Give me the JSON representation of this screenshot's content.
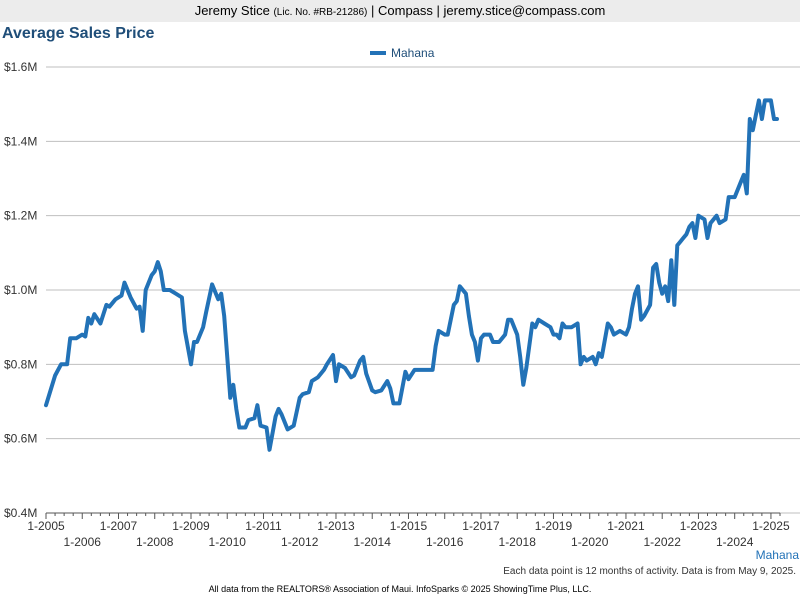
{
  "header": {
    "name": "Jeremy Stice",
    "license": "(Lic. No. #RB-21286)",
    "company_email": "| Compass | jeremy.stice@compass.com"
  },
  "title": "Average Sales Price",
  "legend": {
    "label": "Mahana"
  },
  "region_label": "Mahana",
  "note": "Each data point is 12 months of activity. Data is from May 9, 2025.",
  "footer": "All data from the REALTORS® Association of Maui. InfoSparks © 2025 ShowingTime Plus, LLC.",
  "colors": {
    "series": "#2272b7",
    "title": "#1f4e79",
    "grid": "#bfbfbf"
  },
  "chart_data": {
    "type": "line",
    "title": "Average Sales Price",
    "xlabel": "",
    "ylabel": "",
    "ylim": [
      400000,
      1600000
    ],
    "xlim": [
      "2005-01",
      "2025-04"
    ],
    "grid": true,
    "legend_position": "top-center",
    "y_tick_labels": [
      "$0.4M",
      "$0.6M",
      "$0.8M",
      "$1.0M",
      "$1.2M",
      "$1.4M",
      "$1.6M"
    ],
    "y_tick_values": [
      400000,
      600000,
      800000,
      1000000,
      1200000,
      1400000,
      1600000
    ],
    "x_tick_labels": [
      "1-2005",
      "1-2006",
      "1-2007",
      "1-2008",
      "1-2009",
      "1-2010",
      "1-2011",
      "1-2012",
      "1-2013",
      "1-2014",
      "1-2015",
      "1-2016",
      "1-2017",
      "1-2018",
      "1-2019",
      "1-2020",
      "1-2021",
      "1-2022",
      "1-2023",
      "1-2024",
      "1-2025"
    ],
    "series": [
      {
        "name": "Mahana",
        "points": [
          [
            "2005-01",
            690000
          ],
          [
            "2005-04",
            770000
          ],
          [
            "2005-06",
            800000
          ],
          [
            "2005-08",
            800000
          ],
          [
            "2005-09",
            870000
          ],
          [
            "2005-11",
            870000
          ],
          [
            "2006-01",
            880000
          ],
          [
            "2006-02",
            875000
          ],
          [
            "2006-03",
            925000
          ],
          [
            "2006-04",
            910000
          ],
          [
            "2006-05",
            935000
          ],
          [
            "2006-07",
            910000
          ],
          [
            "2006-09",
            960000
          ],
          [
            "2006-10",
            955000
          ],
          [
            "2006-12",
            975000
          ],
          [
            "2007-02",
            985000
          ],
          [
            "2007-03",
            1020000
          ],
          [
            "2007-05",
            980000
          ],
          [
            "2007-07",
            950000
          ],
          [
            "2007-08",
            955000
          ],
          [
            "2007-09",
            890000
          ],
          [
            "2007-10",
            1000000
          ],
          [
            "2007-12",
            1040000
          ],
          [
            "2008-01",
            1050000
          ],
          [
            "2008-02",
            1075000
          ],
          [
            "2008-03",
            1050000
          ],
          [
            "2008-04",
            1000000
          ],
          [
            "2008-06",
            1000000
          ],
          [
            "2008-08",
            990000
          ],
          [
            "2008-10",
            980000
          ],
          [
            "2008-11",
            890000
          ],
          [
            "2009-01",
            800000
          ],
          [
            "2009-02",
            860000
          ],
          [
            "2009-03",
            860000
          ],
          [
            "2009-05",
            900000
          ],
          [
            "2009-06",
            940000
          ],
          [
            "2009-08",
            1015000
          ],
          [
            "2009-10",
            975000
          ],
          [
            "2009-11",
            990000
          ],
          [
            "2009-12",
            930000
          ],
          [
            "2010-02",
            710000
          ],
          [
            "2010-03",
            745000
          ],
          [
            "2010-04",
            680000
          ],
          [
            "2010-05",
            630000
          ],
          [
            "2010-07",
            630000
          ],
          [
            "2010-08",
            650000
          ],
          [
            "2010-10",
            655000
          ],
          [
            "2010-11",
            690000
          ],
          [
            "2010-12",
            635000
          ],
          [
            "2011-02",
            630000
          ],
          [
            "2011-03",
            570000
          ],
          [
            "2011-05",
            660000
          ],
          [
            "2011-06",
            680000
          ],
          [
            "2011-07",
            665000
          ],
          [
            "2011-09",
            625000
          ],
          [
            "2011-11",
            635000
          ],
          [
            "2012-01",
            710000
          ],
          [
            "2012-02",
            720000
          ],
          [
            "2012-04",
            725000
          ],
          [
            "2012-05",
            755000
          ],
          [
            "2012-07",
            765000
          ],
          [
            "2012-09",
            785000
          ],
          [
            "2012-10",
            800000
          ],
          [
            "2012-12",
            825000
          ],
          [
            "2013-01",
            755000
          ],
          [
            "2013-02",
            800000
          ],
          [
            "2013-04",
            790000
          ],
          [
            "2013-06",
            765000
          ],
          [
            "2013-07",
            770000
          ],
          [
            "2013-09",
            810000
          ],
          [
            "2013-10",
            820000
          ],
          [
            "2013-11",
            775000
          ],
          [
            "2014-01",
            730000
          ],
          [
            "2014-02",
            725000
          ],
          [
            "2014-04",
            730000
          ],
          [
            "2014-06",
            755000
          ],
          [
            "2014-07",
            735000
          ],
          [
            "2014-08",
            695000
          ],
          [
            "2014-10",
            695000
          ],
          [
            "2014-12",
            780000
          ],
          [
            "2015-01",
            760000
          ],
          [
            "2015-03",
            785000
          ],
          [
            "2015-06",
            785000
          ],
          [
            "2015-09",
            785000
          ],
          [
            "2015-10",
            850000
          ],
          [
            "2015-11",
            890000
          ],
          [
            "2016-01",
            880000
          ],
          [
            "2016-02",
            880000
          ],
          [
            "2016-04",
            960000
          ],
          [
            "2016-05",
            970000
          ],
          [
            "2016-06",
            1010000
          ],
          [
            "2016-08",
            990000
          ],
          [
            "2016-09",
            930000
          ],
          [
            "2016-10",
            880000
          ],
          [
            "2016-11",
            860000
          ],
          [
            "2016-12",
            810000
          ],
          [
            "2017-01",
            870000
          ],
          [
            "2017-02",
            880000
          ],
          [
            "2017-04",
            880000
          ],
          [
            "2017-05",
            860000
          ],
          [
            "2017-07",
            860000
          ],
          [
            "2017-09",
            880000
          ],
          [
            "2017-10",
            920000
          ],
          [
            "2017-11",
            920000
          ],
          [
            "2018-01",
            880000
          ],
          [
            "2018-02",
            820000
          ],
          [
            "2018-03",
            745000
          ],
          [
            "2018-04",
            790000
          ],
          [
            "2018-06",
            910000
          ],
          [
            "2018-07",
            900000
          ],
          [
            "2018-08",
            920000
          ],
          [
            "2018-10",
            910000
          ],
          [
            "2018-12",
            900000
          ],
          [
            "2019-01",
            880000
          ],
          [
            "2019-02",
            880000
          ],
          [
            "2019-03",
            870000
          ],
          [
            "2019-04",
            910000
          ],
          [
            "2019-05",
            900000
          ],
          [
            "2019-07",
            900000
          ],
          [
            "2019-09",
            910000
          ],
          [
            "2019-10",
            800000
          ],
          [
            "2019-11",
            820000
          ],
          [
            "2019-12",
            810000
          ],
          [
            "2020-02",
            820000
          ],
          [
            "2020-03",
            800000
          ],
          [
            "2020-04",
            830000
          ],
          [
            "2020-05",
            820000
          ],
          [
            "2020-07",
            910000
          ],
          [
            "2020-08",
            900000
          ],
          [
            "2020-09",
            880000
          ],
          [
            "2020-11",
            890000
          ],
          [
            "2021-01",
            880000
          ],
          [
            "2021-02",
            900000
          ],
          [
            "2021-03",
            950000
          ],
          [
            "2021-04",
            990000
          ],
          [
            "2021-05",
            1010000
          ],
          [
            "2021-06",
            920000
          ],
          [
            "2021-07",
            930000
          ],
          [
            "2021-09",
            960000
          ],
          [
            "2021-10",
            1060000
          ],
          [
            "2021-11",
            1070000
          ],
          [
            "2021-12",
            1020000
          ],
          [
            "2022-01",
            990000
          ],
          [
            "2022-02",
            1010000
          ],
          [
            "2022-03",
            970000
          ],
          [
            "2022-04",
            1080000
          ],
          [
            "2022-05",
            960000
          ],
          [
            "2022-06",
            1120000
          ],
          [
            "2022-07",
            1130000
          ],
          [
            "2022-08",
            1140000
          ],
          [
            "2022-09",
            1150000
          ],
          [
            "2022-10",
            1170000
          ],
          [
            "2022-11",
            1180000
          ],
          [
            "2022-12",
            1140000
          ],
          [
            "2023-01",
            1200000
          ],
          [
            "2023-03",
            1190000
          ],
          [
            "2023-04",
            1140000
          ],
          [
            "2023-05",
            1180000
          ],
          [
            "2023-07",
            1200000
          ],
          [
            "2023-08",
            1180000
          ],
          [
            "2023-10",
            1190000
          ],
          [
            "2023-11",
            1250000
          ],
          [
            "2024-01",
            1250000
          ],
          [
            "2024-03",
            1290000
          ],
          [
            "2024-04",
            1310000
          ],
          [
            "2024-05",
            1260000
          ],
          [
            "2024-06",
            1460000
          ],
          [
            "2024-07",
            1430000
          ],
          [
            "2024-08",
            1470000
          ],
          [
            "2024-09",
            1510000
          ],
          [
            "2024-10",
            1460000
          ],
          [
            "2024-11",
            1510000
          ],
          [
            "2024-12",
            1510000
          ],
          [
            "2025-01",
            1510000
          ],
          [
            "2025-02",
            1460000
          ],
          [
            "2025-03",
            1460000
          ]
        ]
      }
    ]
  }
}
